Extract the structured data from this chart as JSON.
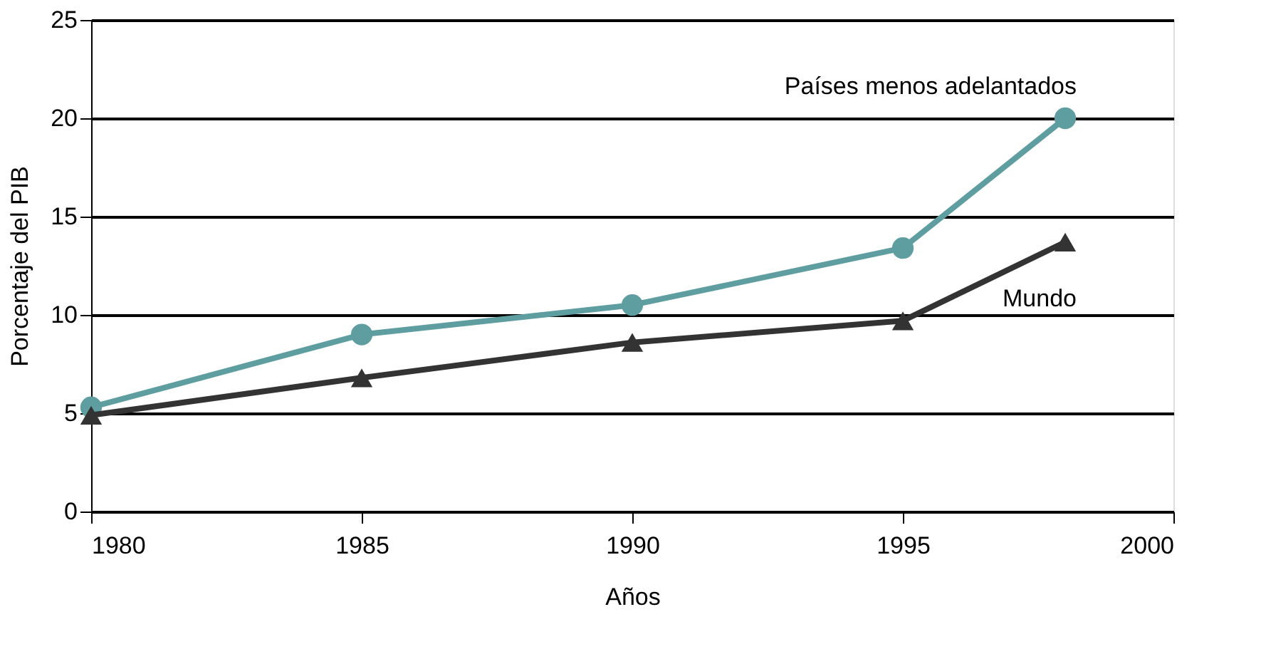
{
  "chart_data": {
    "type": "line",
    "xlabel": "Años",
    "ylabel": "Porcentaje del PIB",
    "x": [
      1980,
      1985,
      1990,
      1995,
      1998
    ],
    "series": [
      {
        "name": "Países menos adelantados",
        "color": "#5f9ea0",
        "marker": "circle",
        "values": [
          5.3,
          9.0,
          10.5,
          13.4,
          20.0
        ]
      },
      {
        "name": "Mundo",
        "color": "#333333",
        "marker": "triangle",
        "values": [
          4.9,
          6.8,
          8.6,
          9.7,
          13.7
        ]
      }
    ],
    "xlim": [
      1980,
      2000
    ],
    "xticks": [
      1980,
      1985,
      1990,
      1995,
      2000
    ],
    "ylim": [
      0,
      25
    ],
    "yticks": [
      0,
      5,
      10,
      15,
      20,
      25
    ],
    "grid": "y",
    "legend": false,
    "line_style": "solid"
  }
}
